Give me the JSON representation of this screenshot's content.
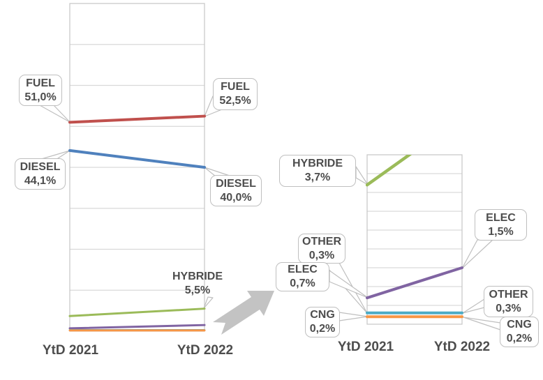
{
  "chart_data": [
    {
      "id": "main",
      "type": "line",
      "subtype": "slopegraph",
      "title": "",
      "categories": [
        "YtD 2021",
        "YtD 2022"
      ],
      "ylim": [
        0,
        80
      ],
      "grid_step": 10,
      "grid": true,
      "legend_position": "none",
      "series": [
        {
          "name": "FUEL",
          "values": [
            51.0,
            52.5
          ],
          "color": "#C0504D"
        },
        {
          "name": "DIESEL",
          "values": [
            44.1,
            40.0
          ],
          "color": "#4F81BD"
        },
        {
          "name": "HYBRIDE",
          "values": [
            3.7,
            5.5
          ],
          "color": "#9BBB59"
        },
        {
          "name": "ELEC",
          "values": [
            0.7,
            1.5
          ],
          "color": "#8064A2"
        },
        {
          "name": "OTHER",
          "values": [
            0.3,
            0.3
          ],
          "color": "#4BACC6"
        },
        {
          "name": "CNG",
          "values": [
            0.2,
            0.2
          ],
          "color": "#F79646"
        }
      ]
    },
    {
      "id": "zoom",
      "type": "line",
      "subtype": "slopegraph-zoom-detail",
      "title": "",
      "categories": [
        "YtD 2021",
        "YtD 2022"
      ],
      "ylim": [
        0,
        4.5
      ],
      "grid_step": 0.5,
      "grid": true,
      "legend_position": "none",
      "series": [
        {
          "name": "FUEL",
          "values": [
            51.0,
            52.5
          ],
          "color": "#C0504D"
        },
        {
          "name": "DIESEL",
          "values": [
            44.1,
            40.0
          ],
          "color": "#4F81BD"
        },
        {
          "name": "HYBRIDE",
          "values": [
            3.7,
            5.5
          ],
          "color": "#9BBB59"
        },
        {
          "name": "ELEC",
          "values": [
            0.7,
            1.5
          ],
          "color": "#8064A2"
        },
        {
          "name": "OTHER",
          "values": [
            0.3,
            0.3
          ],
          "color": "#4BACC6"
        },
        {
          "name": "CNG",
          "values": [
            0.2,
            0.2
          ],
          "color": "#F79646"
        }
      ]
    }
  ],
  "axis": {
    "labels": [
      "YtD 2021",
      "YtD 2022"
    ]
  },
  "callouts": {
    "fuel_2021": {
      "label": "FUEL",
      "value": "51,0%"
    },
    "fuel_2022": {
      "label": "FUEL",
      "value": "52,5%"
    },
    "diesel_2021": {
      "label": "DIESEL",
      "value": "44,1%"
    },
    "diesel_2022": {
      "label": "DIESEL",
      "value": "40,0%"
    },
    "hybride_2022": {
      "label": "HYBRIDE",
      "value": "5,5%"
    },
    "hybride_2021": {
      "label": "HYBRIDE",
      "value": "3,7%"
    },
    "elec_2022": {
      "label": "ELEC",
      "value": "1,5%"
    },
    "other_2021": {
      "label": "OTHER",
      "value": "0,3%"
    },
    "elec_2021": {
      "label": "ELEC",
      "value": "0,7%"
    },
    "cng_2021": {
      "label": "CNG",
      "value": "0,2%"
    },
    "other_2022": {
      "label": "OTHER",
      "value": "0,3%"
    },
    "cng_2022": {
      "label": "CNG",
      "value": "0,2%"
    }
  },
  "colors": {
    "gridline": "#D9D9D9",
    "plot_border": "#C6C6C6",
    "callout_border": "#BFBFBF",
    "label_text": "#4D4D4D",
    "zoom_arrow": "#C3C3C3"
  }
}
